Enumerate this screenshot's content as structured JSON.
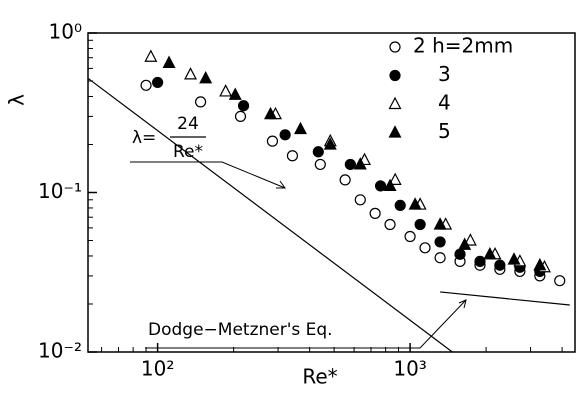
{
  "chart_data": {
    "type": "scatter",
    "x_label": "Re*",
    "y_label": "λ",
    "xlog": true,
    "ylog": true,
    "xlim": [
      53,
      4500
    ],
    "ylim": [
      0.01,
      1
    ],
    "xticks": [
      {
        "value": 100,
        "label": "10²"
      },
      {
        "value": 1000,
        "label": "10³"
      }
    ],
    "yticks": [
      {
        "value": 0.01,
        "label": "10⁻²"
      },
      {
        "value": 0.1,
        "label": "10⁻¹"
      },
      {
        "value": 1,
        "label": "10⁰"
      }
    ],
    "xminorticks": [
      60,
      70,
      80,
      90,
      200,
      300,
      400,
      500,
      600,
      700,
      800,
      900,
      2000,
      3000,
      4000
    ],
    "yminorticks": [
      0.02,
      0.03,
      0.04,
      0.05,
      0.06,
      0.07,
      0.08,
      0.09,
      0.2,
      0.3,
      0.4,
      0.5,
      0.6,
      0.7,
      0.8,
      0.9
    ],
    "series": [
      {
        "name": "2 h=2mm",
        "color": "#000",
        "marker": "circle",
        "filled": false,
        "x": [
          90,
          148,
          213,
          285,
          342,
          441,
          553,
          635,
          727,
          833,
          1000,
          1146,
          1315,
          1577,
          1892,
          2268,
          2722,
          3265,
          3915
        ],
        "values": [
          0.47,
          0.37,
          0.3,
          0.21,
          0.17,
          0.15,
          0.12,
          0.09,
          0.074,
          0.063,
          0.053,
          0.045,
          0.039,
          0.037,
          0.035,
          0.033,
          0.032,
          0.03,
          0.028
        ]
      },
      {
        "name": "3",
        "color": "#000",
        "marker": "circle",
        "filled": true,
        "x": [
          100,
          219,
          320,
          433,
          580,
          764,
          914,
          1096,
          1315,
          1577,
          1892,
          2268,
          2722,
          3265
        ],
        "values": [
          0.49,
          0.35,
          0.23,
          0.18,
          0.15,
          0.11,
          0.083,
          0.063,
          0.049,
          0.041,
          0.037,
          0.035,
          0.034,
          0.032
        ]
      },
      {
        "name": "4",
        "color": "#000",
        "marker": "triangle",
        "filled": false,
        "x": [
          94,
          135,
          186,
          293,
          483,
          660,
          873,
          1096,
          1383,
          1733,
          2170,
          2722,
          3406
        ],
        "values": [
          0.71,
          0.55,
          0.43,
          0.31,
          0.21,
          0.16,
          0.12,
          0.084,
          0.063,
          0.05,
          0.041,
          0.037,
          0.034
        ]
      },
      {
        "name": "5",
        "color": "#000",
        "marker": "triangle",
        "filled": true,
        "x": [
          111,
          155,
          203,
          280,
          368,
          483,
          635,
          833,
          1047,
          1315,
          1645,
          2070,
          2580,
          3265
        ],
        "values": [
          0.65,
          0.52,
          0.41,
          0.31,
          0.25,
          0.2,
          0.15,
          0.11,
          0.084,
          0.063,
          0.047,
          0.041,
          0.038,
          0.035
        ]
      }
    ],
    "lines": [
      {
        "x": [
          53,
          1470
        ],
        "values": [
          0.52,
          0.01
        ]
      },
      {
        "x": [
          1315,
          4290
        ],
        "values": [
          0.0238,
          0.0197
        ]
      }
    ],
    "annotations": {
      "lambda_eq": "λ=",
      "numerator": "24",
      "denominator": "Re*",
      "dodge": "Dodge−Metzner's Eq."
    }
  }
}
